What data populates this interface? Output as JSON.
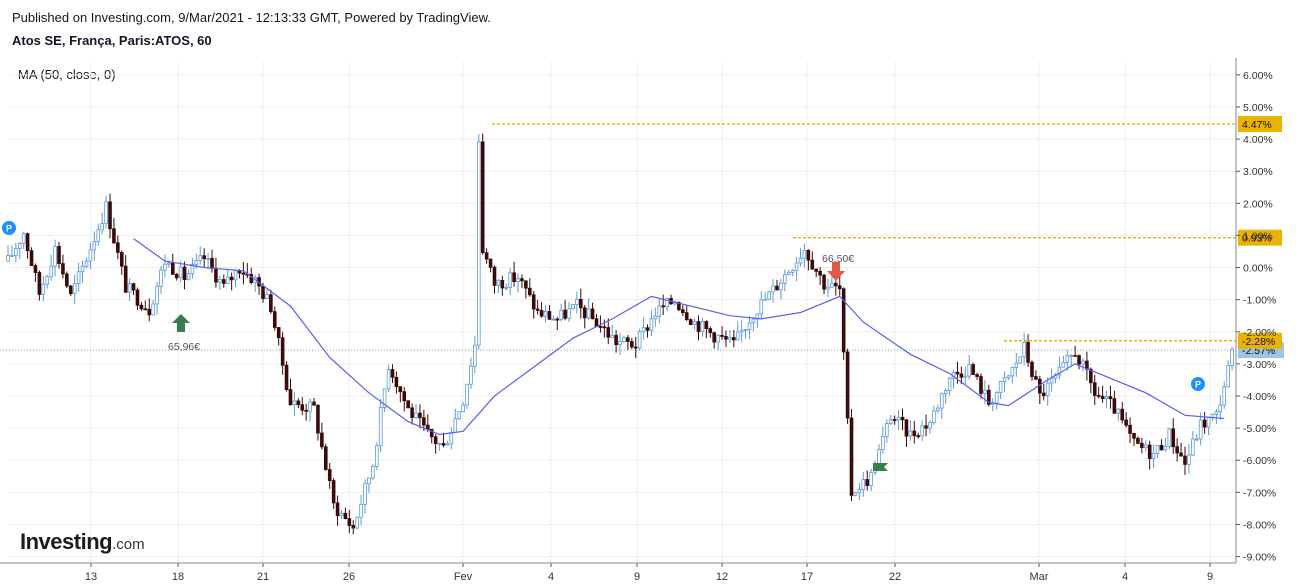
{
  "header": {
    "published": "Published on Investing.com, 9/Mar/2021 - 12:13:33 GMT, Powered by TradingView.",
    "symbol": "Atos SE, França, Paris:ATOS, 60"
  },
  "indicator": {
    "label": "MA (50, close, 0)"
  },
  "brand": {
    "name": "Investing",
    "suffix": ".com"
  },
  "colors": {
    "up": "#ffffff",
    "up_border": "#5b9bd5",
    "down": "#3a0a0a",
    "ma": "#5a5ff0",
    "price_line": "#7ba7c9",
    "level": "#e8b400",
    "last_label": "#9fc3e6",
    "marker_buy": "#3a7d4f",
    "marker_sell": "#e05a45",
    "pin": "#1e90ff",
    "grid": "#eeeeee"
  },
  "chart_data": {
    "type": "candlestick",
    "title": "Atos SE, França, Paris:ATOS, 60",
    "y_unit": "percent",
    "ylim": [
      -9.2,
      6.4
    ],
    "y_ticks": [
      "6.00%",
      "5.00%",
      "4.00%",
      "3.00%",
      "2.00%",
      "1.00%",
      "0.00%",
      "-1.00%",
      "-2.00%",
      "-3.00%",
      "-4.00%",
      "-5.00%",
      "-6.00%",
      "-7.00%",
      "-8.00%",
      "-9.00%"
    ],
    "x_ticks": [
      "13",
      "18",
      "21",
      "26",
      "Fev",
      "4",
      "9",
      "12",
      "17",
      "22",
      "Mar",
      "4",
      "9"
    ],
    "grid": true,
    "legend": "none",
    "levels": [
      {
        "label": "4.47%",
        "value": 4.47
      },
      {
        "label": "0.93%",
        "value": 0.93
      },
      {
        "label": "-2.28%",
        "value": -2.28
      }
    ],
    "last_value": {
      "label": "-2.57%",
      "value": -2.57
    },
    "annotations": [
      {
        "text": "65,96€",
        "kind": "buy"
      },
      {
        "text": "66,50€",
        "kind": "sell"
      }
    ],
    "close_path": [
      [
        0,
        0.2
      ],
      [
        4,
        1.1
      ],
      [
        8,
        -0.8
      ],
      [
        12,
        0.6
      ],
      [
        16,
        -0.9
      ],
      [
        20,
        0.3
      ],
      [
        25,
        1.9
      ],
      [
        30,
        -0.6
      ],
      [
        36,
        -1.3
      ],
      [
        40,
        0.2
      ],
      [
        45,
        -0.3
      ],
      [
        50,
        0.3
      ],
      [
        55,
        -0.6
      ],
      [
        59,
        0.0
      ],
      [
        63,
        -0.4
      ],
      [
        67,
        -1.2
      ],
      [
        72,
        -4.2
      ],
      [
        78,
        -4.4
      ],
      [
        83,
        -7.4
      ],
      [
        88,
        -8.1
      ],
      [
        93,
        -6.1
      ],
      [
        97,
        -3.0
      ],
      [
        102,
        -4.4
      ],
      [
        107,
        -5.2
      ],
      [
        111,
        -5.6
      ],
      [
        116,
        -4.1
      ],
      [
        119,
        -2.4
      ],
      [
        120,
        4.0
      ],
      [
        121,
        0.6
      ],
      [
        124,
        -0.5
      ],
      [
        130,
        -0.3
      ],
      [
        135,
        -1.4
      ],
      [
        140,
        -1.6
      ],
      [
        145,
        -1.2
      ],
      [
        150,
        -1.7
      ],
      [
        155,
        -2.3
      ],
      [
        160,
        -2.4
      ],
      [
        165,
        -1.4
      ],
      [
        170,
        -1.0
      ],
      [
        175,
        -1.7
      ],
      [
        180,
        -2.1
      ],
      [
        185,
        -2.4
      ],
      [
        190,
        -1.4
      ],
      [
        195,
        -0.7
      ],
      [
        200,
        0.1
      ],
      [
        203,
        0.6
      ],
      [
        208,
        -0.5
      ],
      [
        212,
        -0.7
      ],
      [
        215,
        -7.0
      ],
      [
        220,
        -6.5
      ],
      [
        225,
        -4.6
      ],
      [
        230,
        -5.2
      ],
      [
        235,
        -4.8
      ],
      [
        240,
        -3.4
      ],
      [
        245,
        -3.1
      ],
      [
        250,
        -4.2
      ],
      [
        255,
        -3.4
      ],
      [
        259,
        -2.5
      ],
      [
        263,
        -4.0
      ],
      [
        268,
        -3.3
      ],
      [
        272,
        -2.6
      ],
      [
        277,
        -3.9
      ],
      [
        282,
        -4.4
      ],
      [
        287,
        -5.5
      ],
      [
        292,
        -5.8
      ],
      [
        296,
        -5.2
      ],
      [
        300,
        -6.1
      ],
      [
        304,
        -4.9
      ],
      [
        308,
        -4.6
      ],
      [
        312,
        -2.7
      ]
    ],
    "ma_path": [
      [
        32,
        0.9
      ],
      [
        40,
        0.2
      ],
      [
        50,
        0.0
      ],
      [
        60,
        -0.1
      ],
      [
        72,
        -1.2
      ],
      [
        82,
        -2.8
      ],
      [
        92,
        -3.9
      ],
      [
        102,
        -4.8
      ],
      [
        110,
        -5.2
      ],
      [
        116,
        -5.1
      ],
      [
        124,
        -4.0
      ],
      [
        134,
        -3.1
      ],
      [
        144,
        -2.2
      ],
      [
        154,
        -1.6
      ],
      [
        164,
        -0.9
      ],
      [
        174,
        -1.2
      ],
      [
        184,
        -1.5
      ],
      [
        192,
        -1.6
      ],
      [
        202,
        -1.4
      ],
      [
        212,
        -0.9
      ],
      [
        218,
        -1.7
      ],
      [
        230,
        -2.7
      ],
      [
        240,
        -3.3
      ],
      [
        250,
        -4.2
      ],
      [
        255,
        -4.3
      ],
      [
        265,
        -3.5
      ],
      [
        272,
        -3.0
      ],
      [
        280,
        -3.4
      ],
      [
        290,
        -3.9
      ],
      [
        300,
        -4.6
      ],
      [
        310,
        -4.7
      ]
    ]
  }
}
